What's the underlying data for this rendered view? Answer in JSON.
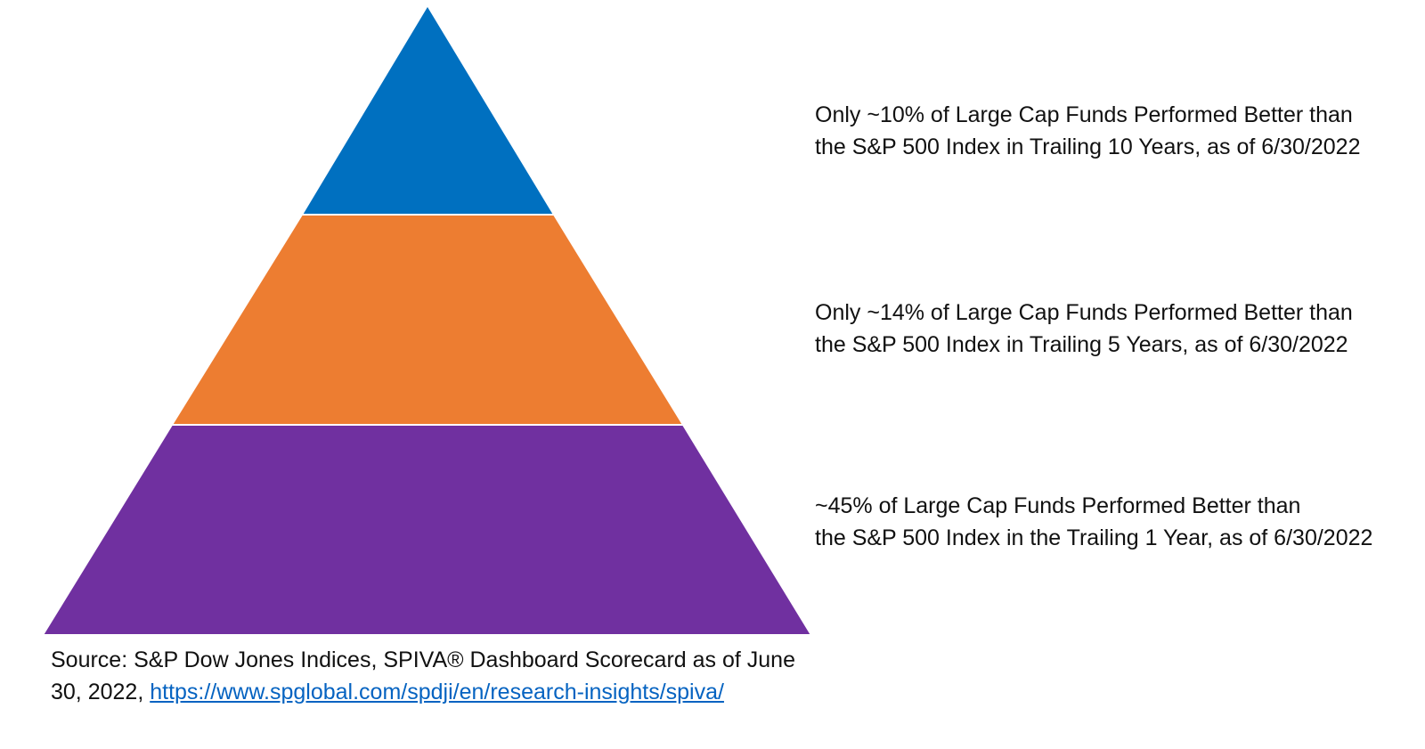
{
  "pyramid": {
    "tiers": [
      {
        "id": "top",
        "color": "#0070c0"
      },
      {
        "id": "middle",
        "color": "#ed7d31"
      },
      {
        "id": "bottom",
        "color": "#7030a0"
      }
    ]
  },
  "labels": {
    "top": {
      "line1": "Only ~10% of Large Cap Funds Performed Better than",
      "line2": "the S&P 500 Index in Trailing 10 Years, as of 6/30/2022"
    },
    "middle": {
      "line1": "Only ~14% of Large Cap Funds Performed Better than",
      "line2": "the S&P 500 Index in Trailing 5 Years, as of 6/30/2022"
    },
    "bottom": {
      "line1": "~45% of Large Cap Funds Performed Better than",
      "line2": "the S&P 500 Index in the Trailing 1 Year, as of 6/30/2022"
    }
  },
  "source": {
    "prefix": "Source: S&P Dow Jones Indices, SPIVA® Dashboard Scorecard as of June 30, 2022, ",
    "link_text": "https://www.spglobal.com/spdji/en/research-insights/spiva/"
  }
}
